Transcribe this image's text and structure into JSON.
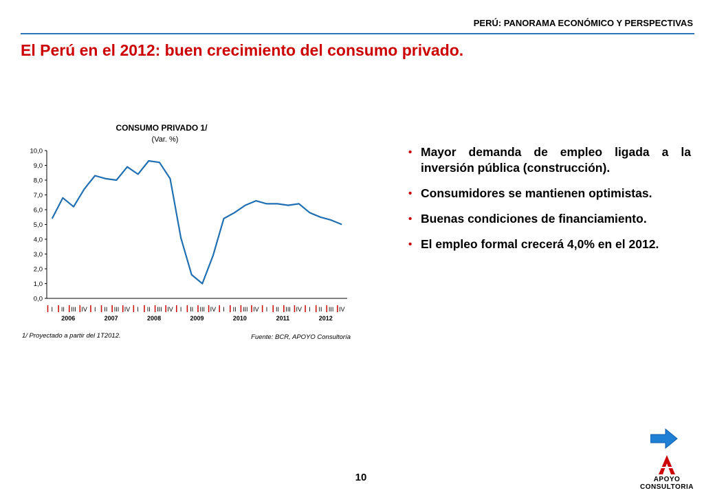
{
  "header": {
    "title": "PERÚ: PANORAMA ECONÓMICO Y PERSPECTIVAS",
    "rule_color": "#2e75b6"
  },
  "slide": {
    "title": "El Perú en el 2012: buen crecimiento del consumo privado.",
    "title_color": "#cc0000",
    "page_number": "10"
  },
  "chart_data": {
    "type": "line",
    "title": "CONSUMO PRIVADO 1/",
    "subtitle": "(Var. %)",
    "ylim": [
      0,
      10
    ],
    "yticks": [
      "0,0",
      "1,0",
      "2,0",
      "3,0",
      "4,0",
      "5,0",
      "6,0",
      "7,0",
      "8,0",
      "9,0",
      "10,0"
    ],
    "quarters": [
      "I",
      "II",
      "III",
      "IV",
      "I",
      "II",
      "III",
      "IV",
      "I",
      "II",
      "III",
      "IV",
      "I",
      "II",
      "III",
      "IV",
      "I",
      "II",
      "III",
      "IV",
      "I",
      "II",
      "III",
      "IV",
      "I",
      "II",
      "III",
      "IV"
    ],
    "years": [
      "2006",
      "2007",
      "2008",
      "2009",
      "2010",
      "2011",
      "2012"
    ],
    "series": [
      {
        "color": "#1f6fb2",
        "values": [
          5.4,
          6.8,
          6.2,
          7.4,
          8.3,
          8.1,
          8.0,
          8.9,
          8.4,
          9.3,
          9.2,
          8.1,
          4.1,
          1.6,
          1.0,
          2.9,
          5.4,
          5.8,
          6.3,
          6.6,
          6.4,
          6.4,
          6.3,
          6.4,
          5.8,
          5.5,
          5.3,
          5.0
        ]
      }
    ],
    "footnote": "1/ Proyectado a partir del 1T2012.",
    "source": "Fuente: BCR, APOYO Consultoría",
    "grid": false,
    "legend": "none"
  },
  "bullets": [
    "Mayor demanda de empleo ligada a la inversión pública (construcción).",
    "Consumidores se mantienen optimistas.",
    "Buenas condiciones de financiamiento.",
    "El empleo formal crecerá 4,0% en el 2012."
  ],
  "icons": {
    "bullet": "•",
    "next": "arrow-right-icon",
    "logo": "apoyo-consultoria-logo"
  },
  "logo": {
    "line1": "APOYO",
    "line2": "CONSULTORIA"
  },
  "colors": {
    "accent_red": "#cc0000",
    "arrow_blue": "#1f7fd4",
    "line_blue": "#1f6fb2"
  }
}
